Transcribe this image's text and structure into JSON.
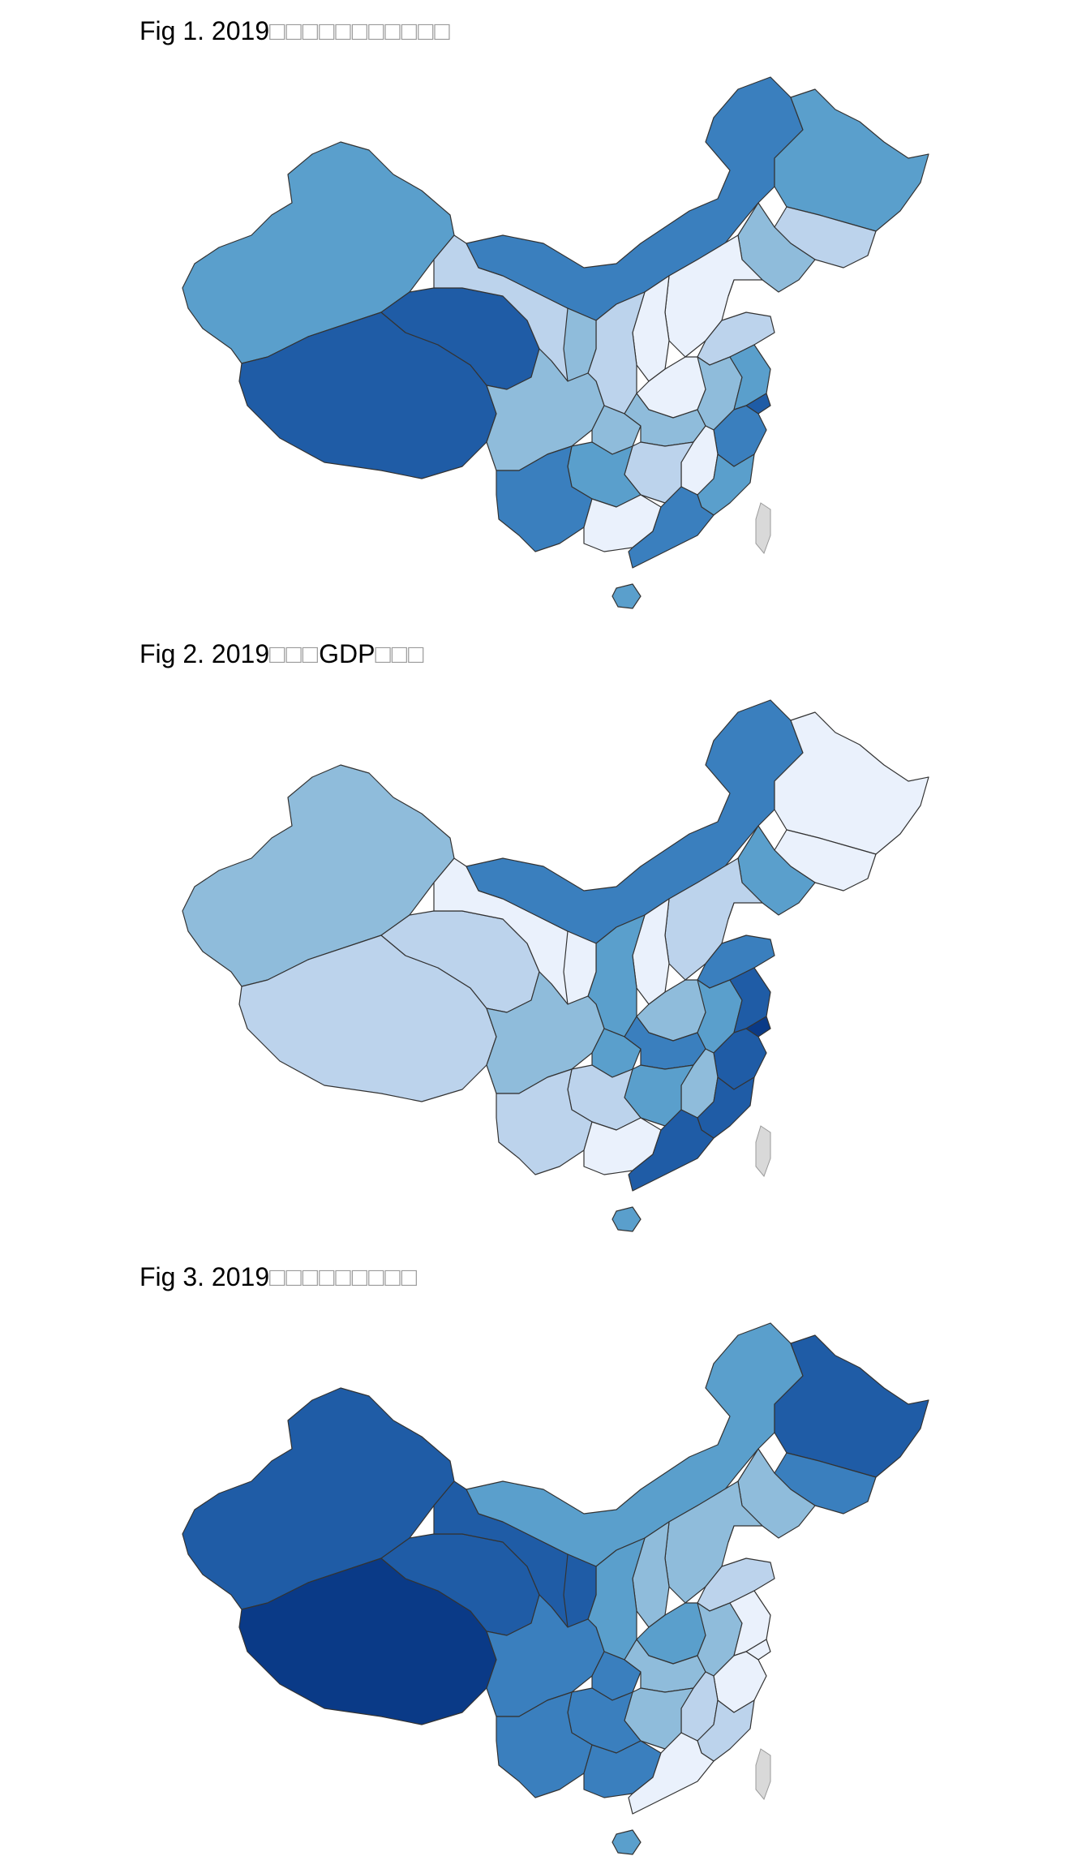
{
  "palette": [
    "#eaf1fc",
    "#bcd3ec",
    "#8fbcdb",
    "#5a9fcc",
    "#3a7fbe",
    "#1f5ca6",
    "#0a3a87"
  ],
  "taiwan_color": "#d9d9d9",
  "figures": [
    {
      "title_text": "Fig 1. 2019",
      "title_tofu": "□□□□□□□□□□□",
      "shading": {
        "XJ": 3,
        "XZ": 5,
        "QH": 5,
        "GS": 1,
        "NM": 4,
        "HLJ": 3,
        "JL": 1,
        "LN": 2,
        "BJ": 6,
        "TJ": 1,
        "HEB": 0,
        "SX": 0,
        "SD": 1,
        "HEN": 0,
        "SAX": 1,
        "NX": 2,
        "SC": 2,
        "CQ": 2,
        "HUB": 2,
        "HUN": 1,
        "JX": 0,
        "AH": 2,
        "JS": 3,
        "ZJ": 4,
        "SH": 5,
        "FJ": 3,
        "GD": 4,
        "GX": 0,
        "GZ": 3,
        "YN": 4,
        "HAN": 3
      }
    },
    {
      "title_text": "Fig 2. 2019",
      "title_tofu": "□□□",
      "title_mid": "GDP",
      "title_tofu2": "□□□",
      "shading": {
        "XJ": 2,
        "XZ": 1,
        "QH": 1,
        "GS": 0,
        "NM": 4,
        "HLJ": 0,
        "JL": 0,
        "LN": 3,
        "BJ": 6,
        "TJ": 4,
        "HEB": 1,
        "SX": 0,
        "SD": 4,
        "HEN": 2,
        "SAX": 3,
        "NX": 0,
        "SC": 2,
        "CQ": 3,
        "HUB": 4,
        "HUN": 3,
        "JX": 2,
        "AH": 3,
        "JS": 5,
        "ZJ": 5,
        "SH": 6,
        "FJ": 5,
        "GD": 5,
        "GX": 0,
        "GZ": 1,
        "YN": 1,
        "HAN": 3
      }
    },
    {
      "title_text": "Fig 3. 2019",
      "title_tofu": "□□□□□□□□□",
      "shading": {
        "XJ": 5,
        "XZ": 6,
        "QH": 5,
        "GS": 5,
        "NM": 3,
        "HLJ": 5,
        "JL": 4,
        "LN": 2,
        "BJ": 1,
        "TJ": 0,
        "HEB": 2,
        "SX": 2,
        "SD": 1,
        "HEN": 3,
        "SAX": 3,
        "NX": 5,
        "SC": 4,
        "CQ": 4,
        "HUB": 2,
        "HUN": 2,
        "JX": 1,
        "AH": 2,
        "JS": 0,
        "ZJ": 0,
        "SH": 0,
        "FJ": 1,
        "GD": 0,
        "GX": 4,
        "GZ": 4,
        "YN": 4,
        "HAN": 3
      }
    }
  ]
}
